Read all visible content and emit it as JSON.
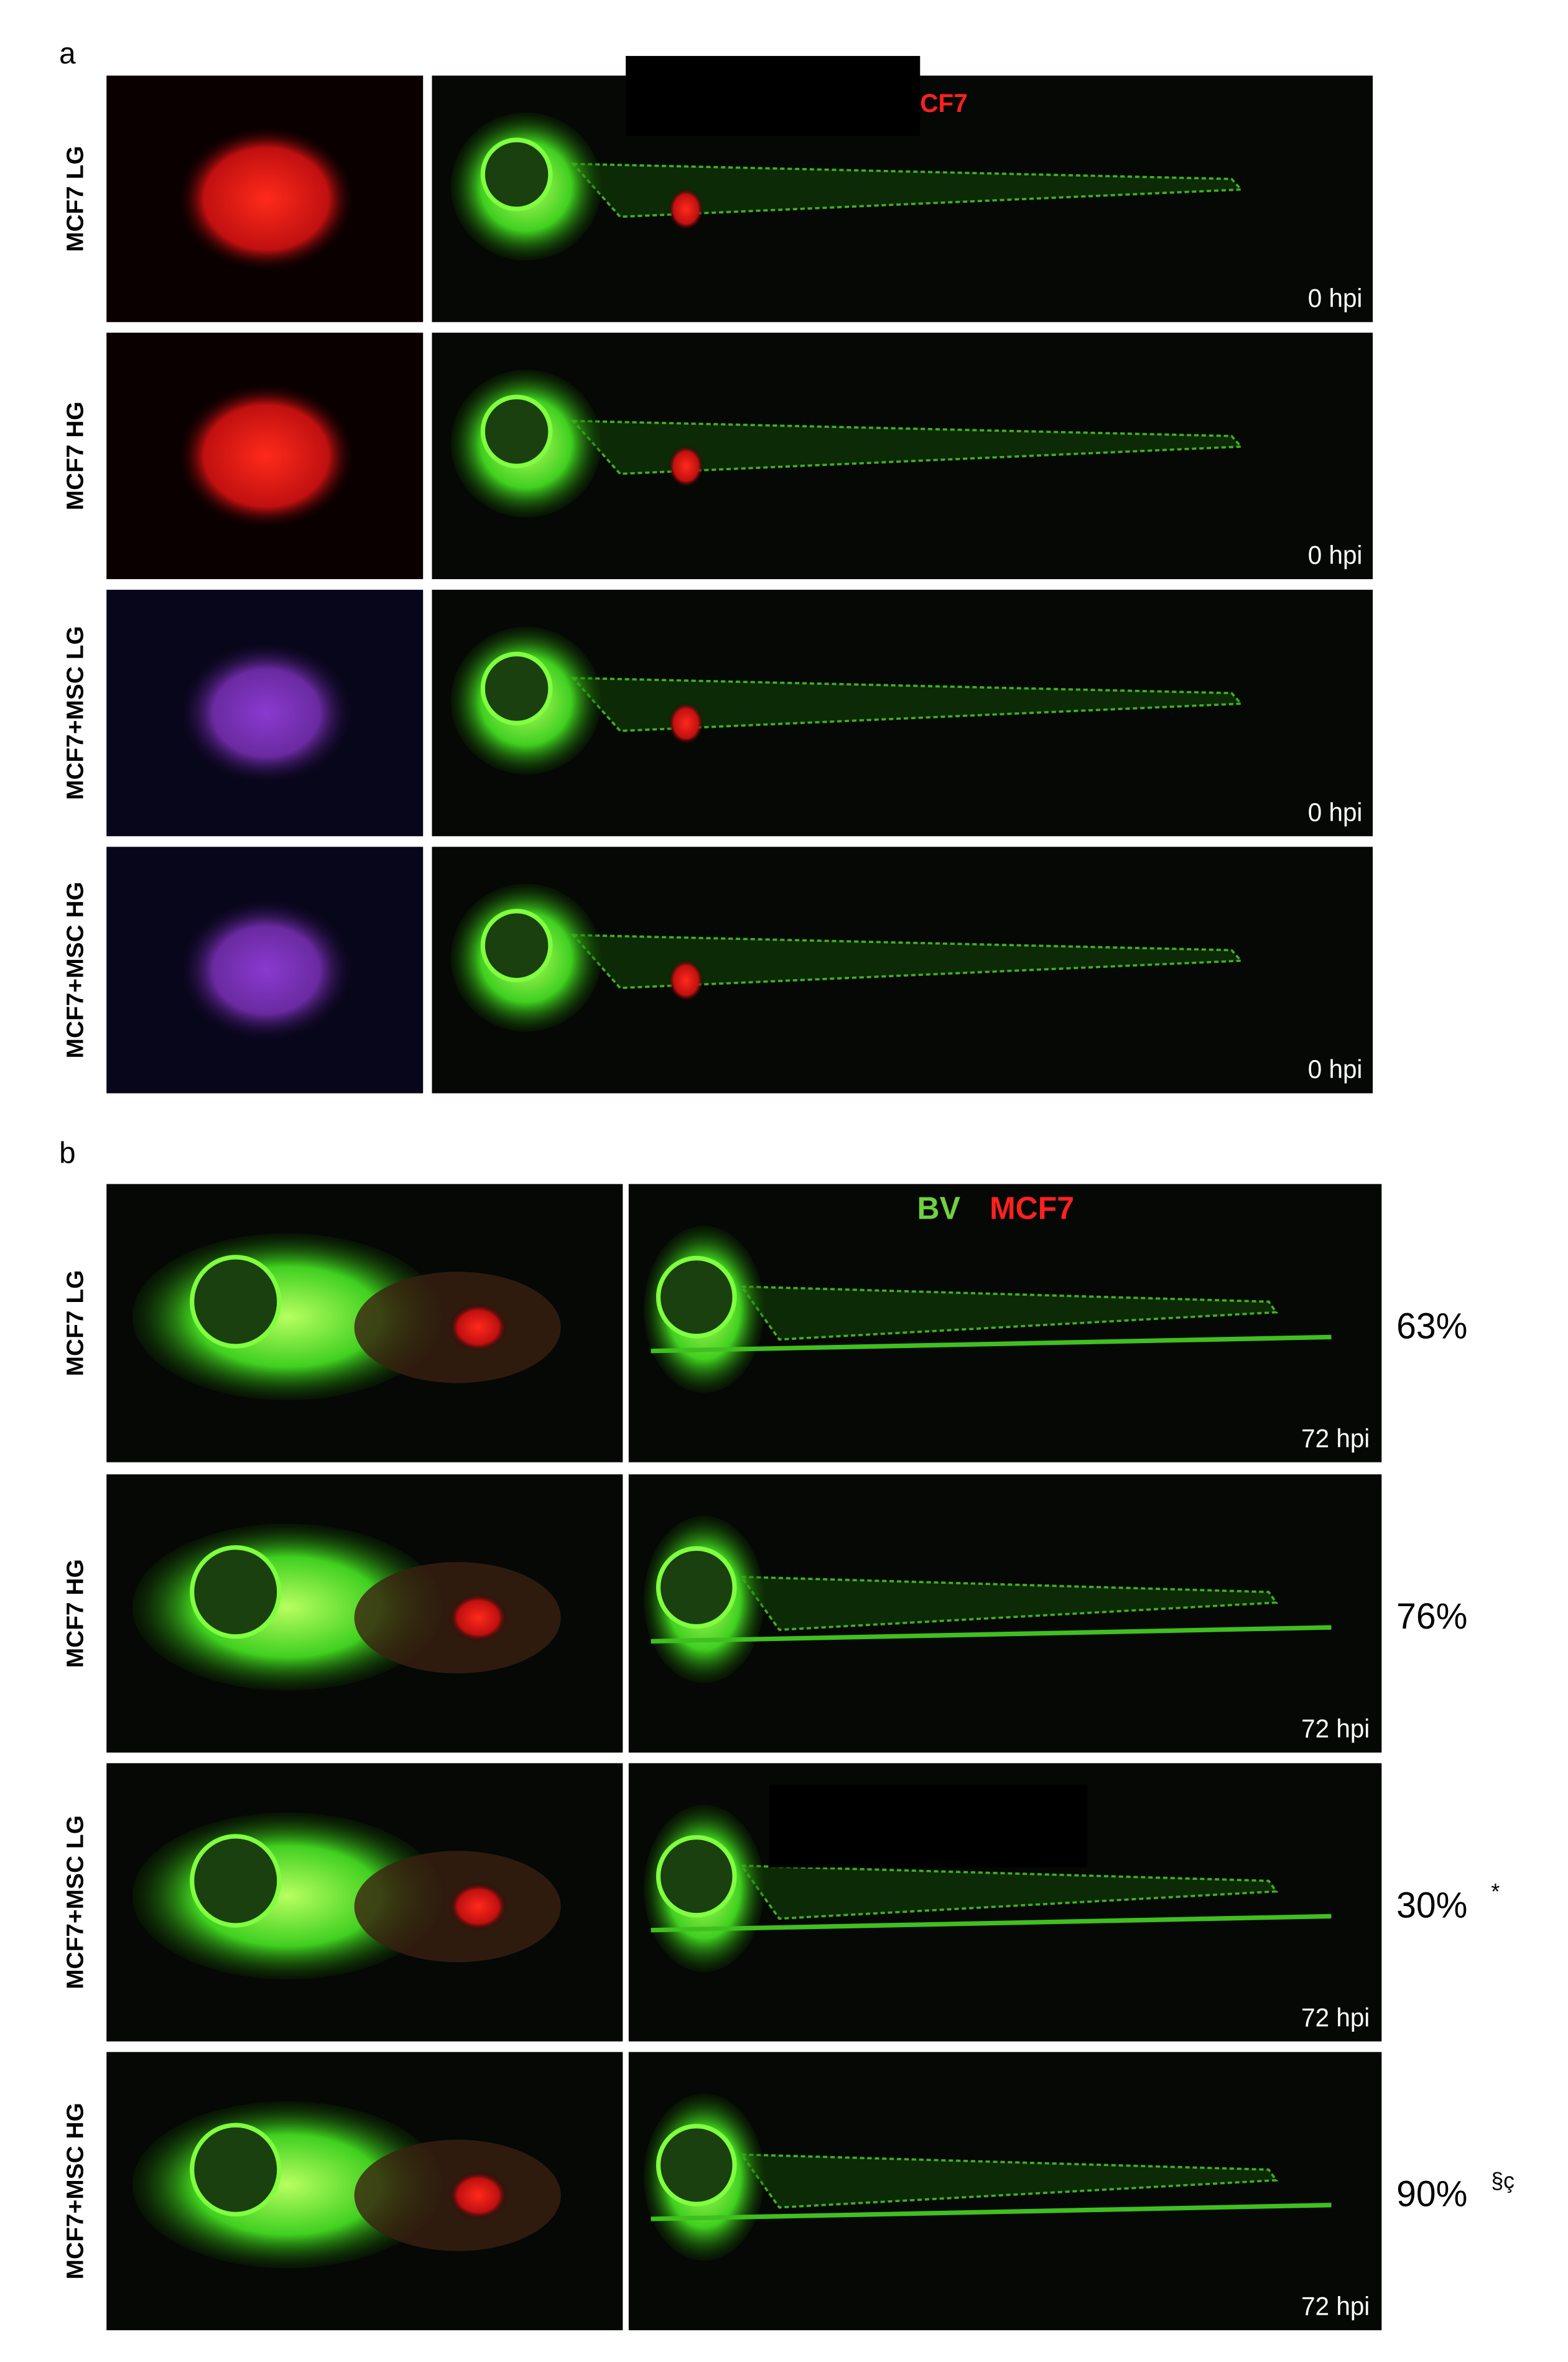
{
  "panel_a": {
    "label": "a",
    "legend": "CF7",
    "rows": [
      {
        "label": "MCF7 LG",
        "time": "0 hpi"
      },
      {
        "label": "MCF7 HG",
        "time": "0 hpi"
      },
      {
        "label": "MCF7+MSC LG",
        "time": "0 hpi"
      },
      {
        "label": "MCF7+MSC HG",
        "time": "0 hpi"
      }
    ]
  },
  "panel_b": {
    "label": "b",
    "legend": [
      "BV",
      "MCF7"
    ],
    "rows": [
      {
        "label": "MCF7 LG",
        "time": "72 hpi",
        "percent": "63%"
      },
      {
        "label": "MCF7 HG",
        "time": "72 hpi",
        "percent": "76%"
      },
      {
        "label": "MCF7+MSC LG",
        "time": "72 hpi",
        "percent": "30%",
        "mark": "*"
      },
      {
        "label": "MCF7+MSC HG",
        "time": "72 hpi",
        "percent": "90%",
        "mark": "§ç"
      }
    ]
  }
}
